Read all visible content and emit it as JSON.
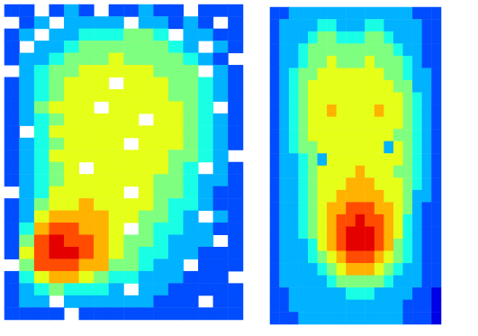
{
  "chart_data": [
    {
      "type": "heatmap",
      "tick_labels": false,
      "zlim": [
        0,
        10
      ],
      "z": [
        [
          2,
          2,
          null,
          2,
          3,
          2,
          null,
          2,
          2,
          3,
          2,
          2,
          null,
          2,
          2,
          2
        ],
        [
          null,
          2,
          3,
          null,
          3,
          3,
          3,
          3,
          null,
          3,
          3,
          2,
          3,
          2,
          null,
          2
        ],
        [
          2,
          3,
          null,
          3,
          3,
          4,
          4,
          4,
          5,
          5,
          4,
          null,
          3,
          3,
          2,
          2
        ],
        [
          2,
          null,
          3,
          3,
          4,
          5,
          5,
          5,
          5,
          5,
          5,
          4,
          3,
          null,
          3,
          2
        ],
        [
          2,
          3,
          3,
          4,
          5,
          5,
          5,
          6,
          5,
          5,
          5,
          5,
          4,
          3,
          2,
          null
        ],
        [
          null,
          3,
          4,
          5,
          5,
          6,
          6,
          6,
          6,
          6,
          5,
          5,
          5,
          null,
          3,
          2
        ],
        [
          2,
          3,
          4,
          5,
          6,
          6,
          6,
          null,
          6,
          6,
          6,
          5,
          5,
          4,
          3,
          2
        ],
        [
          2,
          3,
          4,
          5,
          6,
          6,
          6,
          6,
          6,
          6,
          6,
          5,
          5,
          4,
          3,
          2
        ],
        [
          2,
          3,
          5,
          6,
          6,
          6,
          null,
          6,
          6,
          6,
          6,
          6,
          5,
          4,
          null,
          2
        ],
        [
          2,
          3,
          4,
          5,
          6,
          6,
          6,
          6,
          6,
          null,
          6,
          6,
          5,
          4,
          3,
          2
        ],
        [
          2,
          null,
          4,
          6,
          6,
          6,
          6,
          6,
          6,
          6,
          6,
          6,
          5,
          4,
          3,
          2
        ],
        [
          2,
          3,
          4,
          5,
          6,
          6,
          6,
          6,
          null,
          6,
          6,
          6,
          5,
          4,
          3,
          2
        ],
        [
          2,
          3,
          4,
          6,
          6,
          6,
          6,
          6,
          6,
          6,
          6,
          5,
          5,
          4,
          3,
          null
        ],
        [
          2,
          3,
          4,
          5,
          6,
          null,
          6,
          6,
          6,
          6,
          6,
          5,
          4,
          null,
          3,
          2
        ],
        [
          2,
          3,
          4,
          5,
          6,
          6,
          6,
          6,
          6,
          6,
          5,
          5,
          4,
          3,
          3,
          2
        ],
        [
          null,
          3,
          4,
          6,
          6,
          6,
          6,
          6,
          null,
          6,
          5,
          5,
          4,
          3,
          2,
          2
        ],
        [
          2,
          3,
          5,
          6,
          6,
          7,
          6,
          6,
          6,
          6,
          5,
          4,
          4,
          3,
          2,
          2
        ],
        [
          2,
          3,
          6,
          7,
          7,
          7,
          7,
          6,
          6,
          5,
          5,
          4,
          3,
          null,
          3,
          2
        ],
        [
          2,
          4,
          7,
          8,
          8,
          7,
          7,
          6,
          null,
          5,
          4,
          4,
          3,
          3,
          2,
          2
        ],
        [
          2,
          5,
          8,
          9,
          8,
          8,
          7,
          6,
          5,
          5,
          4,
          3,
          3,
          3,
          null,
          2
        ],
        [
          2,
          6,
          8,
          9,
          9,
          8,
          7,
          6,
          5,
          4,
          4,
          3,
          3,
          2,
          2,
          2
        ],
        [
          null,
          5,
          8,
          8,
          8,
          7,
          7,
          5,
          5,
          4,
          3,
          3,
          null,
          2,
          2,
          2
        ],
        [
          2,
          4,
          6,
          7,
          7,
          6,
          5,
          4,
          4,
          3,
          3,
          3,
          2,
          2,
          2,
          null
        ],
        [
          2,
          3,
          4,
          5,
          4,
          4,
          4,
          3,
          null,
          3,
          3,
          2,
          2,
          2,
          2,
          2
        ],
        [
          2,
          3,
          3,
          null,
          3,
          3,
          3,
          3,
          3,
          3,
          2,
          2,
          2,
          null,
          2,
          2
        ],
        [
          2,
          2,
          2,
          2,
          null,
          2,
          2,
          2,
          2,
          2,
          2,
          2,
          2,
          2,
          2,
          2
        ]
      ]
    },
    {
      "type": "heatmap",
      "tick_labels": false,
      "zlim": [
        0,
        10
      ],
      "z": [
        [
          2,
          2,
          3,
          3,
          3,
          3,
          3,
          3,
          3,
          3,
          3,
          3,
          3,
          3,
          3,
          2,
          2,
          2
        ],
        [
          2,
          3,
          3,
          3,
          3,
          4,
          4,
          3,
          3,
          3,
          4,
          4,
          3,
          3,
          3,
          3,
          2,
          2
        ],
        [
          2,
          3,
          3,
          3,
          4,
          5,
          5,
          4,
          4,
          4,
          5,
          5,
          4,
          3,
          3,
          3,
          2,
          2
        ],
        [
          2,
          3,
          3,
          4,
          5,
          5,
          5,
          5,
          5,
          5,
          5,
          5,
          5,
          4,
          3,
          3,
          2,
          2
        ],
        [
          2,
          3,
          3,
          4,
          5,
          5,
          6,
          5,
          5,
          5,
          6,
          5,
          5,
          5,
          4,
          3,
          2,
          2
        ],
        [
          2,
          3,
          4,
          5,
          5,
          6,
          6,
          6,
          6,
          6,
          6,
          6,
          5,
          5,
          4,
          3,
          3,
          2
        ],
        [
          2,
          3,
          4,
          5,
          6,
          6,
          6,
          6,
          6,
          6,
          6,
          6,
          6,
          5,
          5,
          3,
          3,
          2
        ],
        [
          2,
          3,
          4,
          5,
          6,
          6,
          6,
          6,
          6,
          6,
          6,
          6,
          6,
          6,
          5,
          4,
          3,
          2
        ],
        [
          2,
          3,
          4,
          5,
          6,
          6,
          7,
          6,
          6,
          6,
          6,
          7,
          6,
          6,
          5,
          4,
          3,
          2
        ],
        [
          2,
          3,
          4,
          5,
          6,
          6,
          6,
          6,
          6,
          6,
          6,
          6,
          6,
          6,
          5,
          4,
          3,
          2
        ],
        [
          2,
          3,
          4,
          5,
          6,
          6,
          6,
          6,
          6,
          6,
          6,
          6,
          6,
          5,
          5,
          4,
          3,
          2
        ],
        [
          2,
          3,
          4,
          5,
          5,
          6,
          6,
          6,
          6,
          6,
          6,
          6,
          3,
          6,
          5,
          4,
          3,
          2
        ],
        [
          2,
          3,
          3,
          4,
          5,
          3,
          6,
          6,
          6,
          6,
          6,
          6,
          6,
          6,
          5,
          4,
          3,
          2
        ],
        [
          2,
          3,
          3,
          4,
          5,
          6,
          6,
          6,
          6,
          7,
          6,
          6,
          6,
          5,
          5,
          4,
          3,
          2
        ],
        [
          2,
          3,
          3,
          4,
          5,
          6,
          6,
          6,
          7,
          7,
          7,
          6,
          6,
          6,
          5,
          4,
          3,
          2
        ],
        [
          2,
          3,
          3,
          4,
          5,
          6,
          6,
          7,
          7,
          7,
          7,
          7,
          6,
          6,
          5,
          3,
          3,
          2
        ],
        [
          2,
          3,
          3,
          4,
          5,
          6,
          7,
          7,
          8,
          8,
          8,
          7,
          7,
          6,
          5,
          3,
          2,
          2
        ],
        [
          2,
          3,
          3,
          4,
          5,
          6,
          7,
          8,
          8,
          9,
          8,
          8,
          7,
          6,
          4,
          3,
          2,
          2
        ],
        [
          2,
          3,
          3,
          4,
          5,
          6,
          7,
          8,
          9,
          9,
          9,
          8,
          7,
          6,
          4,
          3,
          2,
          2
        ],
        [
          2,
          3,
          3,
          3,
          4,
          6,
          7,
          8,
          9,
          9,
          9,
          8,
          7,
          5,
          4,
          3,
          2,
          2
        ],
        [
          2,
          3,
          3,
          3,
          4,
          5,
          6,
          7,
          8,
          8,
          8,
          7,
          6,
          5,
          4,
          3,
          2,
          2
        ],
        [
          2,
          3,
          3,
          3,
          3,
          4,
          5,
          6,
          7,
          7,
          7,
          6,
          5,
          4,
          3,
          3,
          2,
          2
        ],
        [
          2,
          3,
          3,
          3,
          3,
          3,
          4,
          5,
          5,
          5,
          5,
          5,
          4,
          3,
          3,
          3,
          2,
          2
        ],
        [
          2,
          2,
          3,
          3,
          3,
          3,
          3,
          3,
          4,
          4,
          4,
          3,
          3,
          3,
          3,
          2,
          2,
          1
        ],
        [
          2,
          2,
          3,
          3,
          3,
          3,
          3,
          3,
          3,
          3,
          3,
          3,
          3,
          3,
          2,
          2,
          2,
          1
        ],
        [
          2,
          2,
          2,
          3,
          3,
          3,
          3,
          3,
          3,
          3,
          3,
          3,
          3,
          3,
          2,
          2,
          2,
          1
        ]
      ]
    }
  ]
}
